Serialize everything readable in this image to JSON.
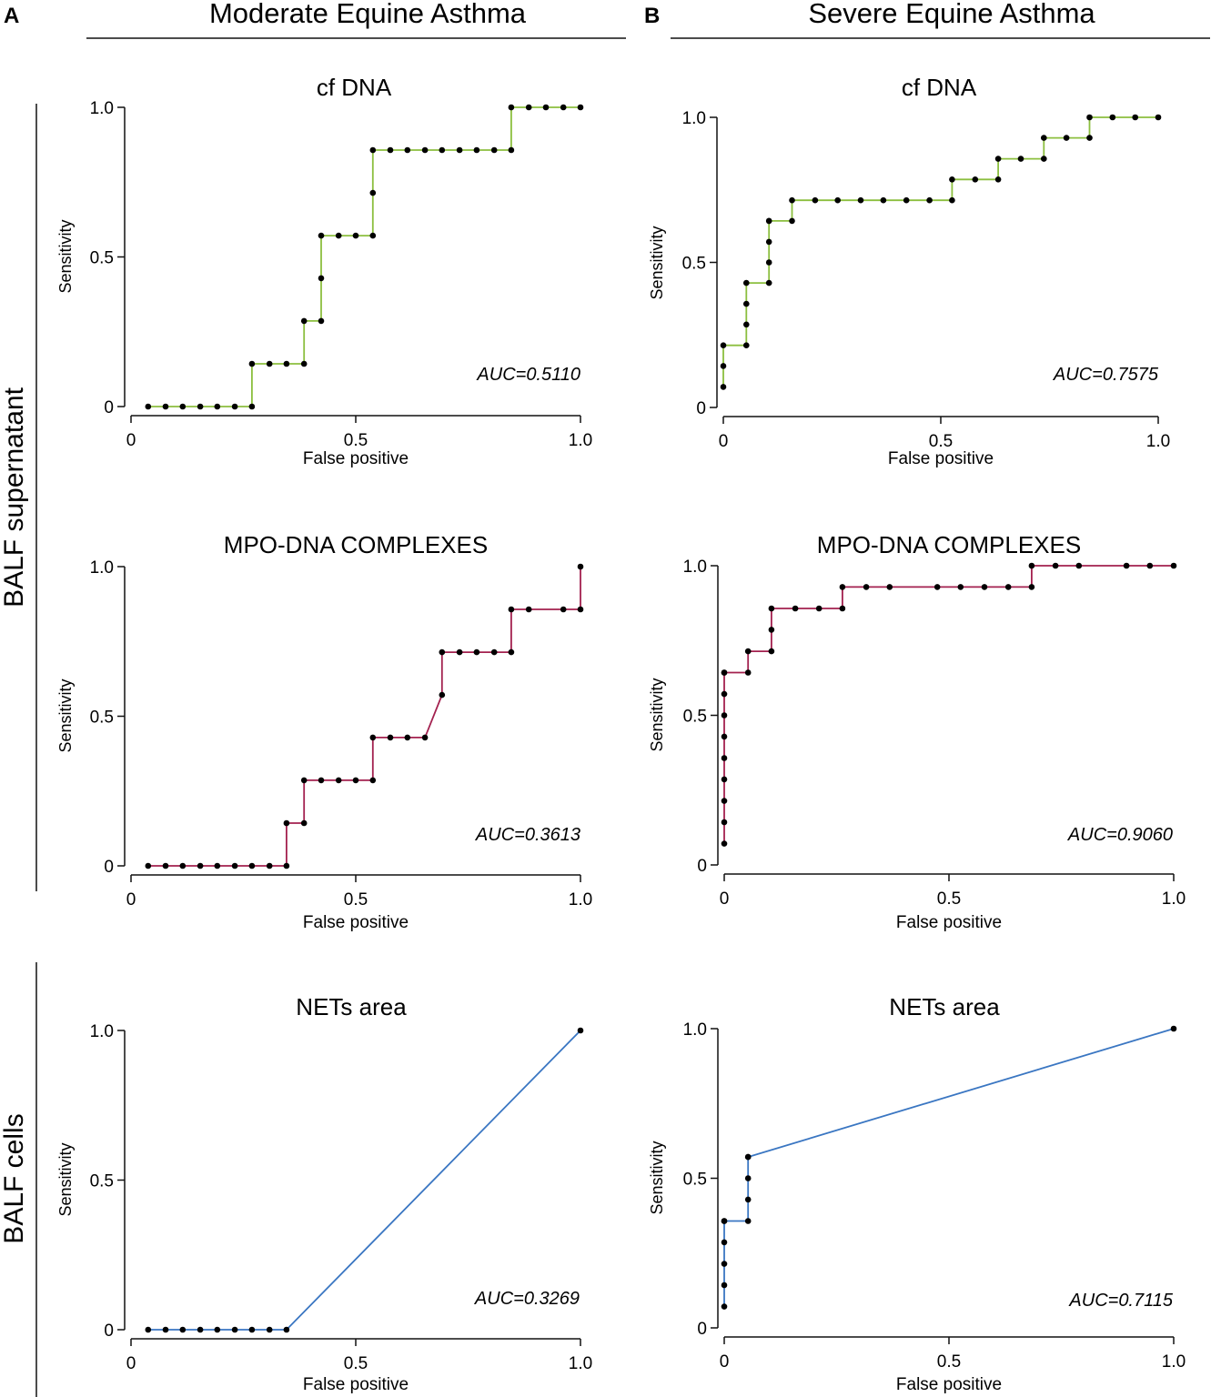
{
  "panel_labels": [
    "A",
    "B"
  ],
  "column_headers": [
    "Moderate Equine Asthma",
    "Severe Equine Asthma"
  ],
  "row_labels": [
    "BALF supernatant",
    "BALF cells"
  ],
  "colors": {
    "green": "#8cbf3f",
    "crimson": "#a3214f",
    "blue": "#3a76c2",
    "marker": "#000000",
    "axis": "#111111"
  },
  "chart_data": [
    {
      "id": "cfdna-moderate",
      "type": "line",
      "title": "cf DNA",
      "xlabel": "False positive",
      "ylabel": "Sensitivity",
      "xlim": [
        0,
        1
      ],
      "ylim": [
        0,
        1
      ],
      "xticks": [
        0,
        0.5,
        1
      ],
      "xtick_labels": [
        "0",
        "0.5",
        "1.0"
      ],
      "yticks": [
        0,
        0.5,
        1
      ],
      "ytick_labels": [
        "0",
        "0.5",
        "1.0"
      ],
      "auc_label": "AUC=0.5110",
      "color_key": "green",
      "x": [
        0.038,
        0.077,
        0.115,
        0.154,
        0.192,
        0.231,
        0.269,
        0.269,
        0.308,
        0.346,
        0.385,
        0.385,
        0.423,
        0.423,
        0.423,
        0.462,
        0.5,
        0.538,
        0.538,
        0.538,
        0.577,
        0.615,
        0.654,
        0.692,
        0.731,
        0.769,
        0.808,
        0.846,
        0.846,
        0.885,
        0.923,
        0.962,
        1.0
      ],
      "y": [
        0,
        0,
        0,
        0,
        0,
        0,
        0,
        0.143,
        0.143,
        0.143,
        0.143,
        0.286,
        0.286,
        0.429,
        0.571,
        0.571,
        0.571,
        0.571,
        0.714,
        0.857,
        0.857,
        0.857,
        0.857,
        0.857,
        0.857,
        0.857,
        0.857,
        0.857,
        1.0,
        1.0,
        1.0,
        1.0,
        1.0
      ]
    },
    {
      "id": "cfdna-severe",
      "type": "line",
      "title": "cf DNA",
      "xlabel": "False positive",
      "ylabel": "Sensitivity",
      "xlim": [
        0,
        1
      ],
      "ylim": [
        0,
        1
      ],
      "xticks": [
        0,
        0.5,
        1
      ],
      "xtick_labels": [
        "0",
        "0.5",
        "1.0"
      ],
      "yticks": [
        0,
        0.5,
        1
      ],
      "ytick_labels": [
        "0",
        "0.5",
        "1.0"
      ],
      "auc_label": "AUC=0.7575",
      "color_key": "green",
      "x": [
        0,
        0,
        0,
        0.053,
        0.053,
        0.053,
        0.053,
        0.105,
        0.105,
        0.105,
        0.105,
        0.105,
        0.158,
        0.158,
        0.211,
        0.263,
        0.316,
        0.368,
        0.421,
        0.474,
        0.526,
        0.526,
        0.579,
        0.632,
        0.632,
        0.684,
        0.737,
        0.737,
        0.789,
        0.842,
        0.842,
        0.895,
        0.947,
        1.0
      ],
      "y": [
        0.071,
        0.143,
        0.214,
        0.214,
        0.286,
        0.357,
        0.429,
        0.429,
        0.5,
        0.571,
        0.643,
        0.643,
        0.643,
        0.714,
        0.714,
        0.714,
        0.714,
        0.714,
        0.714,
        0.714,
        0.714,
        0.786,
        0.786,
        0.786,
        0.857,
        0.857,
        0.857,
        0.929,
        0.929,
        0.929,
        1.0,
        1.0,
        1.0,
        1.0
      ]
    },
    {
      "id": "mpo-moderate",
      "type": "line",
      "title": "MPO-DNA COMPLEXES",
      "xlabel": "False positive",
      "ylabel": "Sensitivity",
      "xlim": [
        0,
        1
      ],
      "ylim": [
        0,
        1
      ],
      "xticks": [
        0,
        0.5,
        1
      ],
      "xtick_labels": [
        "0",
        "0.5",
        "1.0"
      ],
      "yticks": [
        0,
        0.5,
        1
      ],
      "ytick_labels": [
        "0",
        "0.5",
        "1.0"
      ],
      "auc_label": "AUC=0.3613",
      "color_key": "crimson",
      "x": [
        0.038,
        0.077,
        0.115,
        0.154,
        0.192,
        0.231,
        0.269,
        0.308,
        0.346,
        0.346,
        0.385,
        0.385,
        0.423,
        0.462,
        0.5,
        0.538,
        0.538,
        0.577,
        0.615,
        0.654,
        0.692,
        0.692,
        0.731,
        0.769,
        0.808,
        0.846,
        0.846,
        0.885,
        0.962,
        1.0,
        1.0
      ],
      "y": [
        0,
        0,
        0,
        0,
        0,
        0,
        0,
        0,
        0,
        0.143,
        0.143,
        0.286,
        0.286,
        0.286,
        0.286,
        0.286,
        0.429,
        0.429,
        0.429,
        0.429,
        0.571,
        0.714,
        0.714,
        0.714,
        0.714,
        0.714,
        0.857,
        0.857,
        0.857,
        0.857,
        1.0
      ]
    },
    {
      "id": "mpo-severe",
      "type": "line",
      "title": "MPO-DNA COMPLEXES",
      "xlabel": "False positive",
      "ylabel": "Sensitivity",
      "xlim": [
        0,
        1
      ],
      "ylim": [
        0,
        1
      ],
      "xticks": [
        0,
        0.5,
        1
      ],
      "xtick_labels": [
        "0",
        "0.5",
        "1.0"
      ],
      "yticks": [
        0,
        0.5,
        1
      ],
      "ytick_labels": [
        "0",
        "0.5",
        "1.0"
      ],
      "auc_label": "AUC=0.9060",
      "color_key": "crimson",
      "x": [
        0,
        0,
        0,
        0,
        0,
        0,
        0,
        0,
        0,
        0,
        0.053,
        0.053,
        0.105,
        0.105,
        0.105,
        0.158,
        0.211,
        0.263,
        0.263,
        0.316,
        0.368,
        0.474,
        0.526,
        0.579,
        0.632,
        0.684,
        0.684,
        0.737,
        0.789,
        0.895,
        0.947,
        1.0
      ],
      "y": [
        0.071,
        0.143,
        0.214,
        0.286,
        0.357,
        0.429,
        0.5,
        0.571,
        0.643,
        0.643,
        0.643,
        0.714,
        0.714,
        0.786,
        0.857,
        0.857,
        0.857,
        0.857,
        0.929,
        0.929,
        0.929,
        0.929,
        0.929,
        0.929,
        0.929,
        0.929,
        1.0,
        1.0,
        1.0,
        1.0,
        1.0,
        1.0
      ]
    },
    {
      "id": "nets-moderate",
      "type": "line",
      "title": "NETs area",
      "xlabel": "False positive",
      "ylabel": "Sensitivity",
      "xlim": [
        0,
        1
      ],
      "ylim": [
        0,
        1
      ],
      "xticks": [
        0,
        0.5,
        1
      ],
      "xtick_labels": [
        "0",
        "0.5",
        "1.0"
      ],
      "yticks": [
        0,
        0.5,
        1
      ],
      "ytick_labels": [
        "0",
        "0.5",
        "1.0"
      ],
      "auc_label": "AUC=0.3269",
      "color_key": "blue",
      "x": [
        0.038,
        0.077,
        0.115,
        0.154,
        0.192,
        0.231,
        0.269,
        0.308,
        0.346,
        1.0
      ],
      "y": [
        0,
        0,
        0,
        0,
        0,
        0,
        0,
        0,
        0,
        1.0
      ]
    },
    {
      "id": "nets-severe",
      "type": "line",
      "title": "NETs area",
      "xlabel": "False positive",
      "ylabel": "Sensitivity",
      "xlim": [
        0,
        1
      ],
      "ylim": [
        0,
        1
      ],
      "xticks": [
        0,
        0.5,
        1
      ],
      "xtick_labels": [
        "0",
        "0.5",
        "1.0"
      ],
      "yticks": [
        0,
        0.5,
        1
      ],
      "ytick_labels": [
        "0",
        "0.5",
        "1.0"
      ],
      "auc_label": "AUC=0.7115",
      "color_key": "blue",
      "x": [
        0,
        0,
        0,
        0,
        0,
        0,
        0.053,
        0.053,
        0.053,
        0.053,
        0.053,
        1.0
      ],
      "y": [
        0.071,
        0.143,
        0.214,
        0.286,
        0.357,
        0.357,
        0.357,
        0.429,
        0.5,
        0.571,
        0.571,
        1.0
      ]
    }
  ]
}
